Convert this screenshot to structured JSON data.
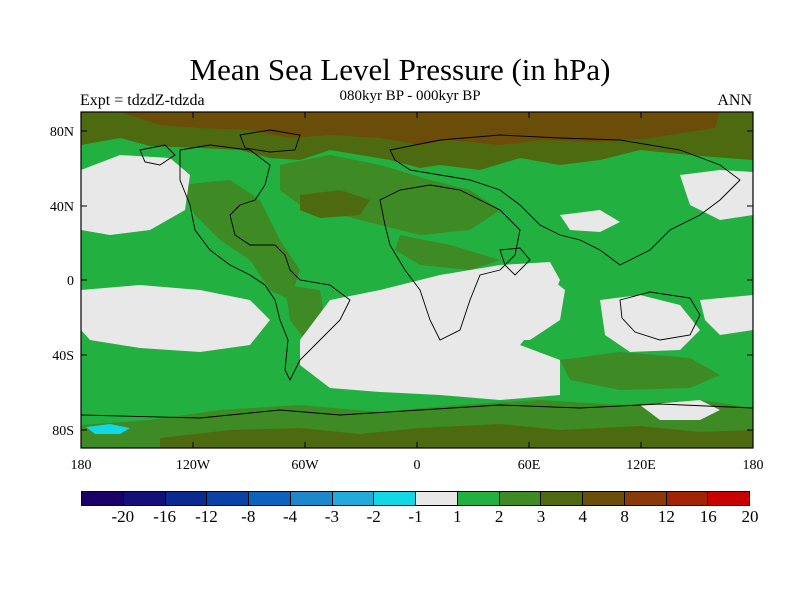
{
  "title": "Mean Sea Level Pressure (in hPa)",
  "experiment": "Expt = tdzdZ-tdzda",
  "period": "080kyr BP - 000kyr BP",
  "season": "ANN",
  "lat_ticks": [
    "80N",
    "40N",
    "0",
    "40S",
    "80S"
  ],
  "lon_ticks": [
    "180",
    "120W",
    "60W",
    "0",
    "60E",
    "120E",
    "180"
  ],
  "colorbar": {
    "labels": [
      "-20",
      "-16",
      "-12",
      "-8",
      "-4",
      "-3",
      "-2",
      "-1",
      "1",
      "2",
      "3",
      "4",
      "8",
      "12",
      "16",
      "20"
    ],
    "colors": [
      "#1a0066",
      "#14107a",
      "#0b2a90",
      "#0a42a6",
      "#0c63be",
      "#1b88cc",
      "#22aadb",
      "#10d8e6",
      "#e8e8e8",
      "#22b040",
      "#3e8a24",
      "#4d6a10",
      "#6a4d08",
      "#8a3a06",
      "#a22204",
      "#c80000"
    ]
  },
  "map_colors": {
    "ocean_base": "#22b040",
    "neutral": "#e8e8e8",
    "level_3": "#3e8a24",
    "level_4": "#4d6a10",
    "level_8": "#6a4d08",
    "negative": "#10d8e6",
    "coast": "#000000"
  }
}
